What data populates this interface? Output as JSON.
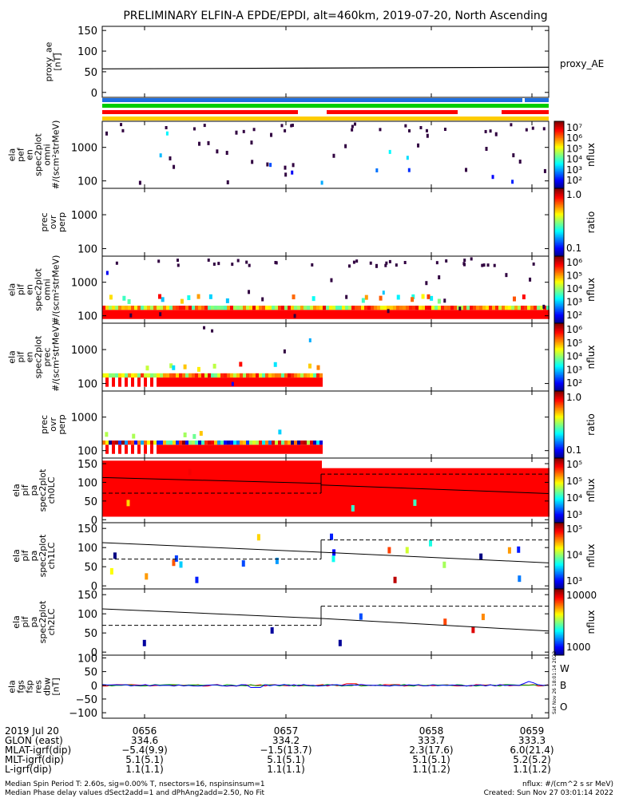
{
  "title": "PRELIMINARY ELFIN-A EPDE/EPDI, alt=460km, 2019-07-20, North Ascending",
  "side_label": "Sat Nov 26 18:01:14 2022",
  "panels": [
    {
      "ylabel": [
        "proxy_ae",
        "[nT]"
      ],
      "ticks": [
        "150",
        "100",
        "50",
        "0"
      ],
      "right_label": "proxy_AE"
    },
    {
      "ylabel": [
        "ela",
        "pef",
        "en",
        "spec2plot",
        "omni",
        "#/(scm²strMeV)"
      ],
      "ticks": [
        "1000",
        "100"
      ],
      "colorbar": "nflux",
      "cb_ticks": [
        "10⁷",
        "10⁶",
        "10⁵",
        "10⁴",
        "10³",
        "10²"
      ]
    },
    {
      "ylabel": [
        "prec",
        "ovr",
        "perp"
      ],
      "ticks": [
        "1000",
        "100"
      ],
      "colorbar": "ratio",
      "cb_ticks": [
        "1.0",
        "0.1"
      ]
    },
    {
      "ylabel": [
        "ela",
        "pif",
        "en",
        "spec2plot",
        "omni",
        "#/(scm²strMeV)"
      ],
      "ticks": [
        "1000",
        "100"
      ],
      "colorbar": "nflux",
      "cb_ticks": [
        "10⁶",
        "10⁵",
        "10⁴",
        "10³",
        "10²"
      ]
    },
    {
      "ylabel": [
        "ela",
        "pif",
        "en",
        "spec2plot",
        "prec",
        "#/(scm²strMeV)"
      ],
      "ticks": [
        "1000",
        "100"
      ],
      "colorbar": "nflux",
      "cb_ticks": [
        "10⁶",
        "10⁵",
        "10⁴",
        "10³",
        "10²"
      ]
    },
    {
      "ylabel": [
        "prec",
        "ovr",
        "perp"
      ],
      "ticks": [
        "1000",
        "100"
      ],
      "colorbar": "ratio",
      "cb_ticks": [
        "1.0",
        "0.1"
      ]
    },
    {
      "ylabel": [
        "ela",
        "pif",
        "pa",
        "spec2plot",
        "ch0LC"
      ],
      "ticks": [
        "150",
        "100",
        "50",
        "0"
      ],
      "colorbar": "nflux",
      "cb_ticks": [
        "10⁵",
        "10⁵",
        "10⁴",
        "10³"
      ]
    },
    {
      "ylabel": [
        "ela",
        "pif",
        "pa",
        "spec2plot",
        "ch1LC"
      ],
      "ticks": [
        "150",
        "100",
        "50",
        "0"
      ],
      "colorbar": "nflux",
      "cb_ticks": [
        "10⁵",
        "10⁴",
        "10³"
      ]
    },
    {
      "ylabel": [
        "ela",
        "pif",
        "pa",
        "spec2plot",
        "ch2LC"
      ],
      "ticks": [
        "150",
        "100",
        "50",
        "0"
      ],
      "colorbar": "nflux",
      "cb_ticks": [
        "10000",
        "1000"
      ]
    },
    {
      "ylabel": [
        "ela",
        "fgs",
        "fsp",
        "res",
        "dbw",
        "[nT]"
      ],
      "ticks": [
        "100",
        "50",
        "0",
        "−50",
        "−100"
      ],
      "right_label": [
        "W",
        "B",
        "O"
      ]
    }
  ],
  "footer": {
    "row_labels": [
      "2019 Jul 20",
      "GLON (east)",
      "MLAT-igrf(dip)",
      "MLT-igrf(dip)",
      "L-igrf(dip)"
    ],
    "columns": [
      [
        "0656",
        "334.6",
        "−5.4(9.9)",
        "5.1(5.1)",
        "1.1(1.1)"
      ],
      [
        "0657",
        "334.2",
        "−1.5(13.7)",
        "5.1(5.1)",
        "1.1(1.1)"
      ],
      [
        "0658",
        "333.7",
        "2.3(17.6)",
        "5.1(5.1)",
        "1.1(1.2)"
      ],
      [
        "0659",
        "333.3",
        "6.0(21.4)",
        "5.2(5.2)",
        "1.1(1.2)"
      ]
    ],
    "note_left_1": "Median Spin Period T: 2.60s, sig=0.00% T, nsectors=16, nspinsinsum=1",
    "note_left_2": "Median Phase delay values dSect2add=1 and dPhAng2add=2.50, No Fit",
    "note_right_1": "nflux: #/(cm^2 s sr MeV)",
    "note_right_2": "Created: Sun Nov 27 03:01:14 2022"
  },
  "colors": {
    "red": "#ff0000",
    "blue": "#0000ff",
    "green": "#00cc00",
    "yellow": "#ffcc00",
    "dark_purple": "#300040"
  },
  "chart_data": {
    "type": "heatmap",
    "x_time_labels": [
      "0656",
      "0657",
      "0658",
      "0659"
    ],
    "proxy_ae_nT": {
      "start": 57,
      "end": 61
    },
    "proxy_ae_ylim": [
      0,
      150
    ],
    "energy_ylim_keV": [
      60,
      6000
    ],
    "pitch_angle_ylim_deg": [
      0,
      160
    ],
    "dbw_ylim_nT": [
      -120,
      110
    ],
    "ch0LC_lines_deg": {
      "solid_before": [
        113,
        97
      ],
      "dashed_before": 71,
      "solid_after": [
        93,
        70
      ],
      "dashed_after": 122
    },
    "ch1LC_lines_deg": {
      "solid_before": [
        113,
        88
      ],
      "dashed_before": 70,
      "solid_after": [
        88,
        60
      ],
      "dashed_after": 120
    },
    "ch2LC_lines_deg": {
      "solid_before": [
        113,
        88
      ],
      "dashed_before": 70,
      "solid_after": [
        88,
        55
      ],
      "dashed_after": 120
    }
  }
}
